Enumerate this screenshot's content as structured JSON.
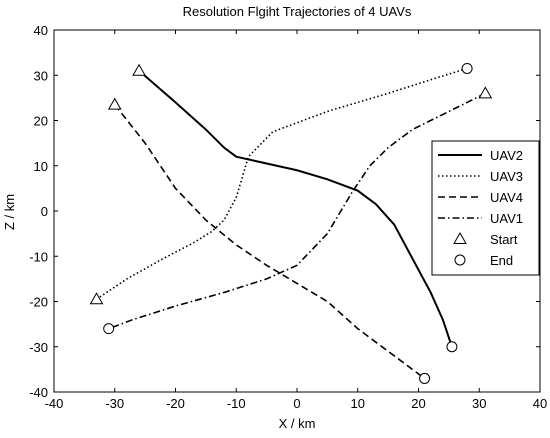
{
  "chart_data": {
    "type": "line",
    "title": "Resolution Flgiht Trajectories of 4 UAVs",
    "xlabel": "X / km",
    "ylabel": "Z / km",
    "xlim": [
      -40,
      40
    ],
    "ylim": [
      -40,
      40
    ],
    "xticks": [
      -40,
      -30,
      -20,
      -10,
      0,
      10,
      20,
      30,
      40
    ],
    "yticks": [
      -40,
      -30,
      -20,
      -10,
      0,
      10,
      20,
      30,
      40
    ],
    "grid": false,
    "legend_position": "right",
    "series": [
      {
        "name": "UAV2",
        "dash": "solid",
        "start_marker": "triangle",
        "end_marker": "circle",
        "x": [
          -26,
          -20,
          -15,
          -12,
          -10,
          -5,
          0,
          5,
          10,
          13,
          16,
          18,
          20,
          22,
          24,
          25.5
        ],
        "y": [
          31,
          24,
          18,
          14,
          12,
          10.5,
          9,
          7,
          4.5,
          1.5,
          -3,
          -8,
          -13,
          -18,
          -24,
          -30
        ]
      },
      {
        "name": "UAV3",
        "dash": "dotted",
        "start_marker": "triangle",
        "end_marker": "circle",
        "x": [
          -33,
          -28,
          -22,
          -17,
          -14,
          -12,
          -10,
          -8,
          -4,
          5,
          15,
          22,
          28
        ],
        "y": [
          -19.5,
          -15,
          -10.5,
          -7,
          -4.5,
          -2,
          3,
          12,
          17.5,
          22,
          26,
          29,
          31.5
        ]
      },
      {
        "name": "UAV4",
        "dash": "dashed",
        "start_marker": "triangle",
        "end_marker": "circle",
        "x": [
          -30,
          -25,
          -20,
          -15,
          -10,
          -5,
          0,
          5,
          10,
          15,
          21
        ],
        "y": [
          23.5,
          15,
          5,
          -2,
          -7.5,
          -12,
          -16,
          -20,
          -26,
          -31,
          -37
        ]
      },
      {
        "name": "UAV1",
        "dash": "dashdot",
        "start_marker": "triangle",
        "end_marker": "circle",
        "x": [
          31,
          25,
          19,
          15,
          12,
          9,
          5,
          0,
          -5,
          -12,
          -20,
          -27,
          -31
        ],
        "y": [
          26,
          22,
          18,
          14,
          10,
          4,
          -5,
          -12,
          -15,
          -18,
          -21,
          -24,
          -26
        ]
      }
    ],
    "legend_markers": [
      {
        "label": "Start",
        "marker": "triangle"
      },
      {
        "label": "End",
        "marker": "circle"
      }
    ]
  }
}
